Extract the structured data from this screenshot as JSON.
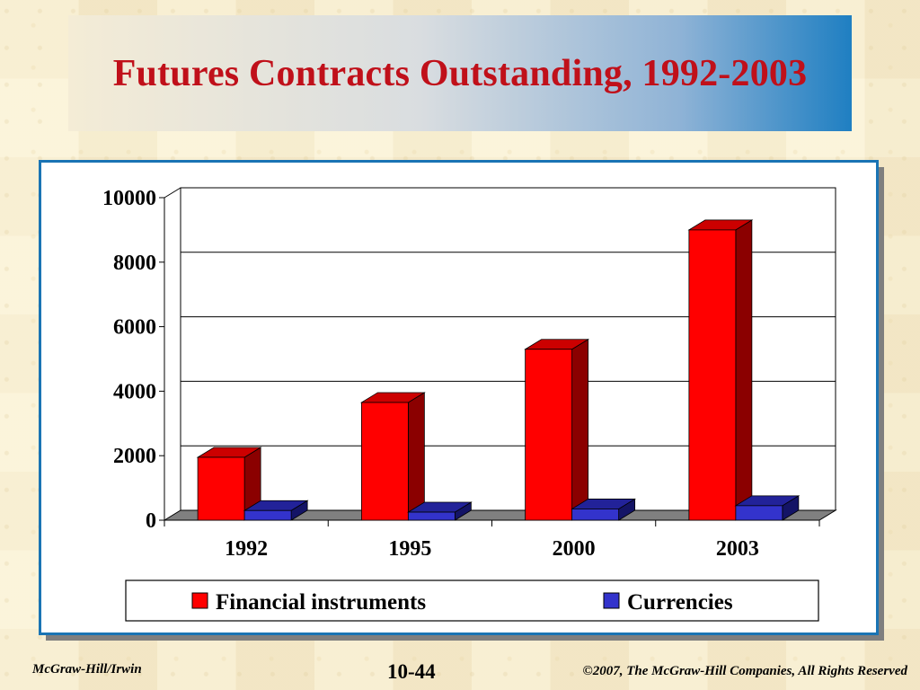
{
  "slide": {
    "title": "Futures Contracts Outstanding, 1992-2003",
    "footer_left": "McGraw-Hill/Irwin",
    "page_number": "10-44",
    "footer_right": "©2007, The McGraw-Hill Companies, All Rights Reserved"
  },
  "colors": {
    "financial_front": "#ff0000",
    "financial_side": "#8b0000",
    "financial_top": "#cc0000",
    "currencies_front": "#3333cc",
    "currencies_side": "#141466",
    "currencies_top": "#222299",
    "title_text": "#c0101a",
    "frame_border": "#1a74b4"
  },
  "chart_data": {
    "type": "bar",
    "title": "",
    "xlabel": "",
    "ylabel": "",
    "categories": [
      "1992",
      "1995",
      "2000",
      "2003"
    ],
    "series": [
      {
        "name": "Financial instruments",
        "values": [
          1950,
          3650,
          5300,
          9000
        ]
      },
      {
        "name": "Currencies",
        "values": [
          300,
          250,
          350,
          450
        ]
      }
    ],
    "ylim": [
      0,
      10000
    ],
    "y_ticks": [
      0,
      2000,
      4000,
      6000,
      8000,
      10000
    ],
    "grid": true,
    "legend_position": "bottom",
    "three_d": true
  }
}
